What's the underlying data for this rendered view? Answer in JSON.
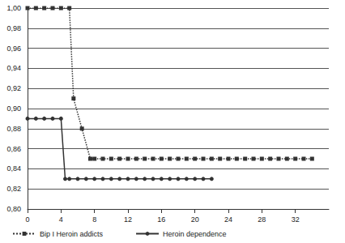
{
  "chart_data": {
    "type": "line",
    "xlim": [
      0,
      36
    ],
    "xticks": [
      0,
      4,
      8,
      12,
      16,
      20,
      24,
      28,
      32
    ],
    "ylim": [
      0.8,
      1.0
    ],
    "yticks": [
      {
        "value": 0.8,
        "label": "0,80"
      },
      {
        "value": 0.82,
        "label": "0,82"
      },
      {
        "value": 0.84,
        "label": "0,84"
      },
      {
        "value": 0.86,
        "label": "0,86"
      },
      {
        "value": 0.88,
        "label": "0,88"
      },
      {
        "value": 0.9,
        "label": "0,90"
      },
      {
        "value": 0.92,
        "label": "0,92"
      },
      {
        "value": 0.94,
        "label": "0,94"
      },
      {
        "value": 0.96,
        "label": "0,96"
      },
      {
        "value": 0.98,
        "label": "0,98"
      },
      {
        "value": 1.0,
        "label": "1,00"
      }
    ],
    "grid": true,
    "legend": "bottom",
    "series": [
      {
        "name": "Bip I Heroin addicts",
        "color": "#333333",
        "marker": "square",
        "line_style": "dotted",
        "x": [
          0,
          1,
          2,
          3,
          4,
          5,
          5.5,
          6.5,
          7.5,
          8,
          9,
          10,
          11,
          12,
          13,
          14,
          15,
          16,
          17,
          18,
          19,
          20,
          21,
          22,
          23,
          24,
          25,
          26,
          27,
          28,
          29,
          30,
          31,
          32,
          33,
          34
        ],
        "values": [
          1.0,
          1.0,
          1.0,
          1.0,
          1.0,
          1.0,
          0.91,
          0.88,
          0.85,
          0.85,
          0.85,
          0.85,
          0.85,
          0.85,
          0.85,
          0.85,
          0.85,
          0.85,
          0.85,
          0.85,
          0.85,
          0.85,
          0.85,
          0.85,
          0.85,
          0.85,
          0.85,
          0.85,
          0.85,
          0.85,
          0.85,
          0.85,
          0.85,
          0.85,
          0.85,
          0.85
        ]
      },
      {
        "name": "Heroin dependence",
        "color": "#333333",
        "marker": "circle",
        "line_style": "solid",
        "x": [
          0,
          1,
          2,
          3,
          4,
          4.5,
          5,
          6,
          7,
          8,
          9,
          10,
          11,
          12,
          13,
          14,
          15,
          16,
          17,
          18,
          19,
          20,
          21,
          22
        ],
        "values": [
          0.89,
          0.89,
          0.89,
          0.89,
          0.89,
          0.83,
          0.83,
          0.83,
          0.83,
          0.83,
          0.83,
          0.83,
          0.83,
          0.83,
          0.83,
          0.83,
          0.83,
          0.83,
          0.83,
          0.83,
          0.83,
          0.83,
          0.83,
          0.83
        ]
      }
    ]
  }
}
